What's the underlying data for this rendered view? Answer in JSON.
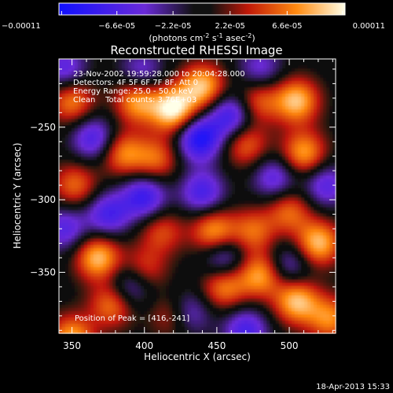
{
  "chart_data": {
    "type": "heatmap",
    "title": "Reconstructed RHESSI Image",
    "xlabel": "Heliocentric X (arcsec)",
    "ylabel": "Heliocentric Y (arcsec)",
    "xlim": [
      341,
      532
    ],
    "ylim": [
      -392,
      -203
    ],
    "x_ticks": [
      350,
      400,
      450,
      500
    ],
    "y_ticks": [
      -250,
      -300,
      -350
    ],
    "colorbar": {
      "ticks": [
        "-0.00011",
        "-6.6e-05",
        "-2.2e-05",
        "2.2e-05",
        "6.6e-05",
        "0.00011"
      ],
      "unit_label_base": "(photons cm",
      "unit_sup1": "-2",
      "unit_mid": " s",
      "unit_sup2": "-1",
      "unit_mid2": " asec",
      "unit_sup3": "-2",
      "unit_end": ")",
      "range": [
        -0.00011,
        0.00011
      ]
    },
    "annotations": [
      "23-Nov-2002 19:59:28.000 to 20:04:28.000",
      "Detectors: 4F 5F 6F 7F 8F, Att 0",
      "Energy Range: 25.0 - 50.0 keV",
      "Clean    Total counts: 3.76E+03"
    ],
    "peak_label": "Position of Peak = [416,-241]",
    "peak": [
      416,
      -241
    ],
    "timestamp": "18-Apr-2013 15:33",
    "blobs": [
      {
        "x": 420,
        "y": -238,
        "v": 0.00011
      },
      {
        "x": 440,
        "y": -222,
        "v": 9e-05
      },
      {
        "x": 395,
        "y": -232,
        "v": 8e-05
      },
      {
        "x": 408,
        "y": -272,
        "v": 6e-05
      },
      {
        "x": 385,
        "y": -268,
        "v": 7e-05
      },
      {
        "x": 478,
        "y": -232,
        "v": 6e-05
      },
      {
        "x": 505,
        "y": -232,
        "v": 9e-05
      },
      {
        "x": 350,
        "y": -232,
        "v": 7e-05
      },
      {
        "x": 352,
        "y": -290,
        "v": 6e-05
      },
      {
        "x": 470,
        "y": -262,
        "v": 6e-05
      },
      {
        "x": 510,
        "y": -268,
        "v": 8e-05
      },
      {
        "x": 448,
        "y": -322,
        "v": 8e-05
      },
      {
        "x": 475,
        "y": -322,
        "v": 6e-05
      },
      {
        "x": 412,
        "y": -322,
        "v": 5e-05
      },
      {
        "x": 500,
        "y": -308,
        "v": 6e-05
      },
      {
        "x": 520,
        "y": -330,
        "v": 9e-05
      },
      {
        "x": 368,
        "y": -340,
        "v": 9e-05
      },
      {
        "x": 400,
        "y": -348,
        "v": 5e-05
      },
      {
        "x": 350,
        "y": -395,
        "v": 8e-05
      },
      {
        "x": 378,
        "y": -372,
        "v": 7e-05
      },
      {
        "x": 455,
        "y": -360,
        "v": 7e-05
      },
      {
        "x": 480,
        "y": -352,
        "v": 8e-05
      },
      {
        "x": 505,
        "y": -370,
        "v": 9e-05
      },
      {
        "x": 528,
        "y": -382,
        "v": 7e-05
      },
      {
        "x": 420,
        "y": -380,
        "v": 5e-05
      },
      {
        "x": 365,
        "y": -258,
        "v": -7e-05
      },
      {
        "x": 438,
        "y": -258,
        "v": -0.0001
      },
      {
        "x": 460,
        "y": -242,
        "v": -8e-05
      },
      {
        "x": 400,
        "y": -298,
        "v": -8e-05
      },
      {
        "x": 440,
        "y": -295,
        "v": -7e-05
      },
      {
        "x": 490,
        "y": -285,
        "v": -6e-05
      },
      {
        "x": 375,
        "y": -310,
        "v": -7e-05
      },
      {
        "x": 455,
        "y": -340,
        "v": -6e-05
      },
      {
        "x": 390,
        "y": -360,
        "v": -6e-05
      },
      {
        "x": 430,
        "y": -378,
        "v": -6e-05
      },
      {
        "x": 500,
        "y": -345,
        "v": -5e-05
      },
      {
        "x": 345,
        "y": -320,
        "v": -6e-05
      },
      {
        "x": 345,
        "y": -210,
        "v": -6e-05
      },
      {
        "x": 480,
        "y": -210,
        "v": -5e-05
      },
      {
        "x": 470,
        "y": -390,
        "v": -7e-05
      },
      {
        "x": 525,
        "y": -290,
        "v": -6e-05
      },
      {
        "x": 398,
        "y": -212,
        "v": -5e-05
      }
    ]
  }
}
